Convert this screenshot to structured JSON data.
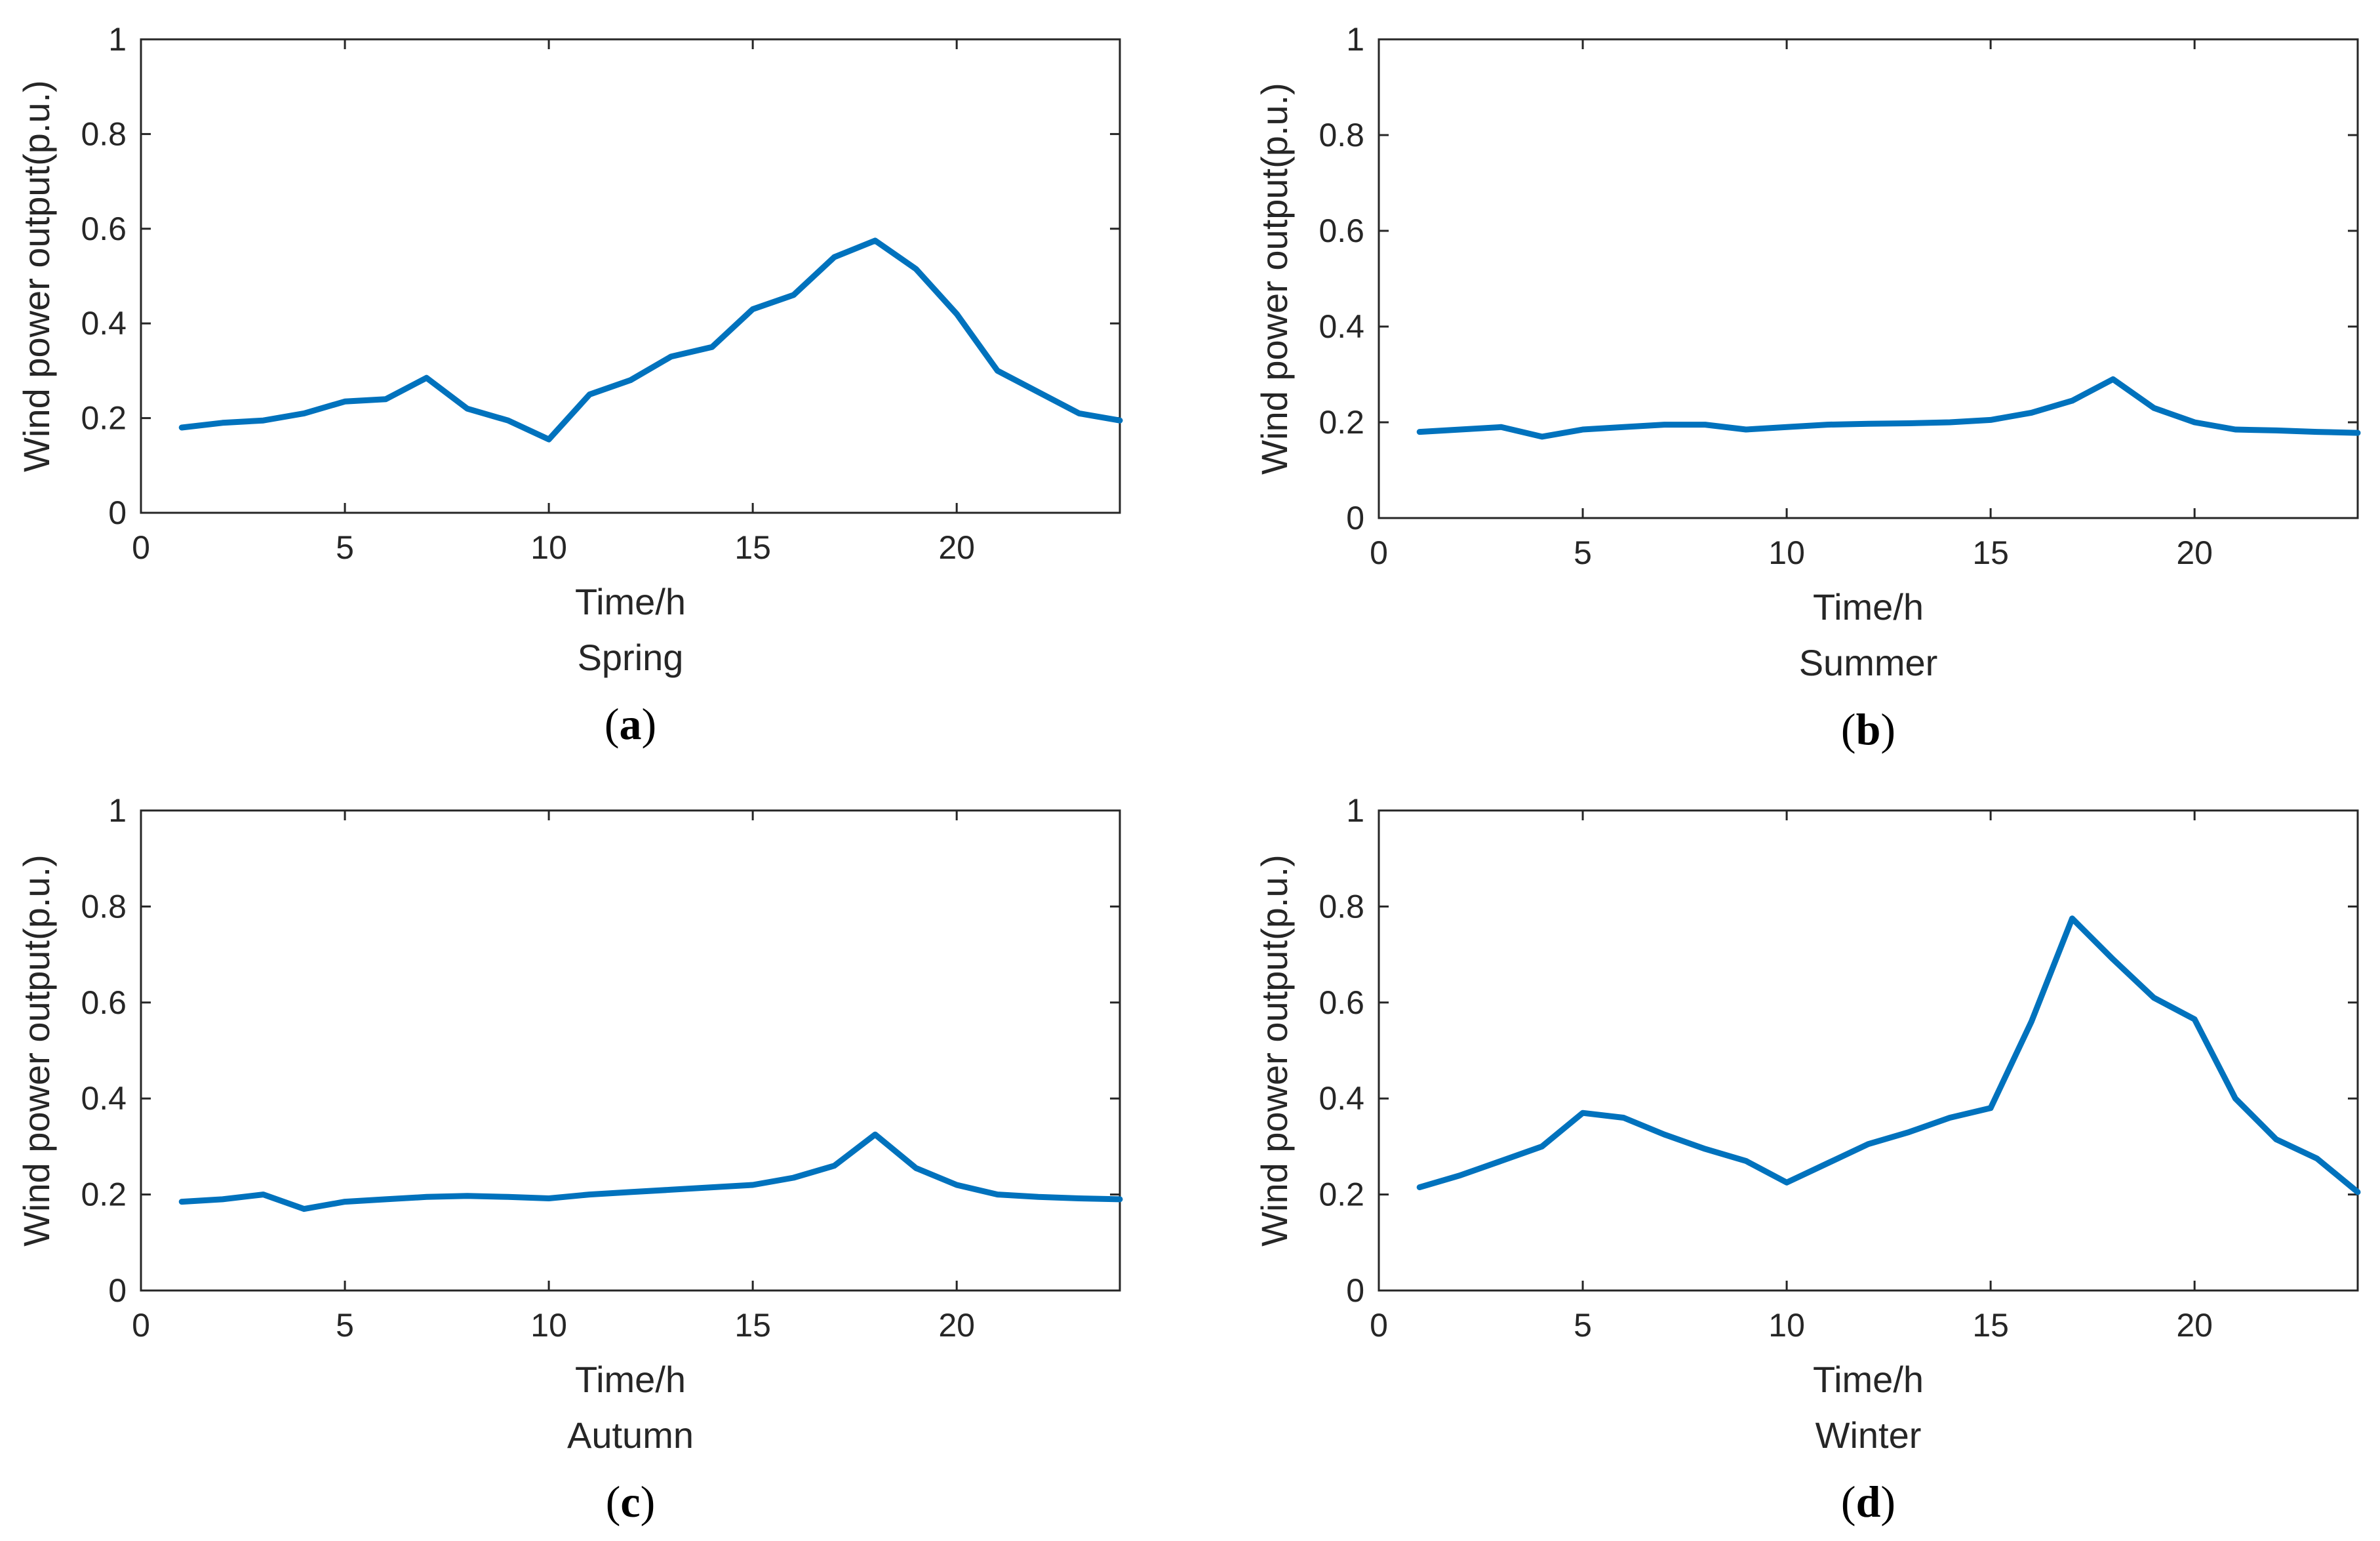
{
  "colors": {
    "line": "#0072BD",
    "axis": "#262626",
    "background": "#ffffff"
  },
  "chart_data": [
    {
      "type": "line",
      "panel": "(a)",
      "panel_letter": "a",
      "season": "Spring",
      "xlabel": "Time/h",
      "ylabel": "Wind power output(p.u.)",
      "xlim": [
        0,
        24
      ],
      "ylim": [
        0,
        1
      ],
      "xticks": [
        "0",
        "5",
        "10",
        "15",
        "20"
      ],
      "yticks": [
        "0",
        "0.2",
        "0.4",
        "0.6",
        "0.8",
        "1"
      ],
      "grid": false,
      "x": [
        1,
        2,
        3,
        4,
        5,
        6,
        7,
        8,
        9,
        10,
        11,
        12,
        13,
        14,
        15,
        16,
        17,
        18,
        19,
        20,
        21,
        22,
        23,
        24
      ],
      "values": [
        0.18,
        0.19,
        0.195,
        0.21,
        0.235,
        0.24,
        0.285,
        0.22,
        0.195,
        0.155,
        0.25,
        0.28,
        0.33,
        0.35,
        0.43,
        0.46,
        0.54,
        0.575,
        0.515,
        0.42,
        0.3,
        0.255,
        0.21,
        0.195
      ]
    },
    {
      "type": "line",
      "panel": "(b)",
      "panel_letter": "b",
      "season": "Summer",
      "xlabel": "Time/h",
      "ylabel": "Wind power output(p.u.)",
      "xlim": [
        0,
        24
      ],
      "ylim": [
        0,
        1
      ],
      "xticks": [
        "0",
        "5",
        "10",
        "15",
        "20"
      ],
      "yticks": [
        "0",
        "0.2",
        "0.4",
        "0.6",
        "0.8",
        "1"
      ],
      "grid": false,
      "x": [
        1,
        2,
        3,
        4,
        5,
        6,
        7,
        8,
        9,
        10,
        11,
        12,
        13,
        14,
        15,
        16,
        17,
        18,
        19,
        20,
        21,
        22,
        23,
        24
      ],
      "values": [
        0.18,
        0.185,
        0.19,
        0.17,
        0.185,
        0.19,
        0.195,
        0.195,
        0.185,
        0.19,
        0.195,
        0.197,
        0.198,
        0.2,
        0.205,
        0.22,
        0.245,
        0.29,
        0.23,
        0.2,
        0.185,
        0.183,
        0.18,
        0.178
      ]
    },
    {
      "type": "line",
      "panel": "(c)",
      "panel_letter": "c",
      "season": "Autumn",
      "xlabel": "Time/h",
      "ylabel": "Wind power output(p.u.)",
      "xlim": [
        0,
        24
      ],
      "ylim": [
        0,
        1
      ],
      "xticks": [
        "0",
        "5",
        "10",
        "15",
        "20"
      ],
      "yticks": [
        "0",
        "0.2",
        "0.4",
        "0.6",
        "0.8",
        "1"
      ],
      "grid": false,
      "x": [
        1,
        2,
        3,
        4,
        5,
        6,
        7,
        8,
        9,
        10,
        11,
        12,
        13,
        14,
        15,
        16,
        17,
        18,
        19,
        20,
        21,
        22,
        23,
        24
      ],
      "values": [
        0.185,
        0.19,
        0.2,
        0.17,
        0.185,
        0.19,
        0.195,
        0.197,
        0.195,
        0.192,
        0.2,
        0.205,
        0.21,
        0.215,
        0.22,
        0.235,
        0.26,
        0.325,
        0.255,
        0.22,
        0.2,
        0.195,
        0.192,
        0.19
      ]
    },
    {
      "type": "line",
      "panel": "(d)",
      "panel_letter": "d",
      "season": "Winter",
      "xlabel": "Time/h",
      "ylabel": "Wind power output(p.u.)",
      "xlim": [
        0,
        24
      ],
      "ylim": [
        0,
        1
      ],
      "xticks": [
        "0",
        "5",
        "10",
        "15",
        "20"
      ],
      "yticks": [
        "0",
        "0.2",
        "0.4",
        "0.6",
        "0.8",
        "1"
      ],
      "grid": false,
      "x": [
        1,
        2,
        3,
        4,
        5,
        6,
        7,
        8,
        9,
        10,
        11,
        12,
        13,
        14,
        15,
        16,
        17,
        18,
        19,
        20,
        21,
        22,
        23,
        24
      ],
      "values": [
        0.215,
        0.24,
        0.27,
        0.3,
        0.37,
        0.36,
        0.325,
        0.295,
        0.27,
        0.225,
        0.265,
        0.305,
        0.33,
        0.36,
        0.38,
        0.56,
        0.775,
        0.69,
        0.61,
        0.565,
        0.4,
        0.315,
        0.275,
        0.205
      ]
    }
  ]
}
